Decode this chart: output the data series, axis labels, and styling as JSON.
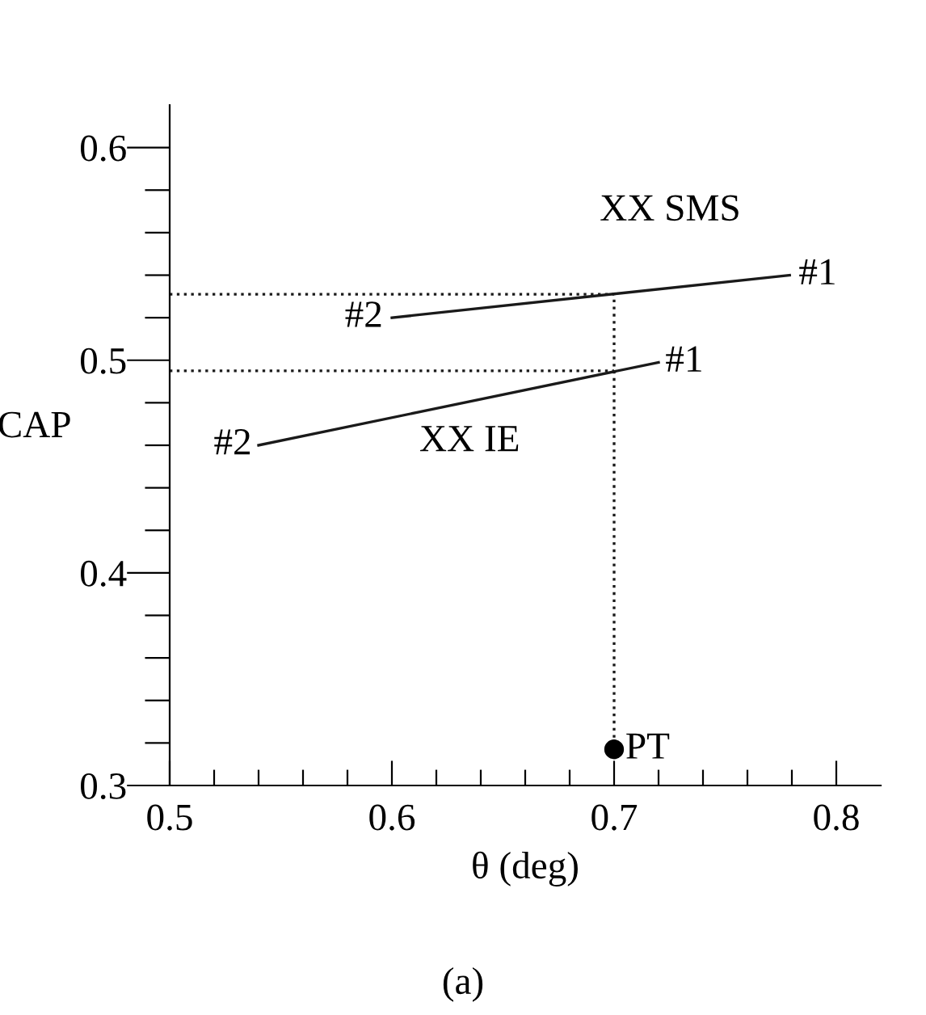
{
  "chart_data": {
    "type": "line",
    "xlabel": "θ (deg)",
    "ylabel": "CAP",
    "xlim": [
      0.5,
      0.82
    ],
    "ylim": [
      0.3,
      0.62
    ],
    "xticks": [
      0.5,
      {
        "value": 0.52,
        "label": null
      },
      {
        "value": 0.54,
        "label": null
      },
      {
        "value": 0.56,
        "label": null
      },
      {
        "value": 0.58,
        "label": null
      },
      0.6,
      {
        "value": 0.62,
        "label": null
      },
      {
        "value": 0.64,
        "label": null
      },
      {
        "value": 0.66,
        "label": null
      },
      {
        "value": 0.68,
        "label": null
      },
      0.7,
      {
        "value": 0.72,
        "label": null
      },
      {
        "value": 0.74,
        "label": null
      },
      {
        "value": 0.76,
        "label": null
      },
      {
        "value": 0.78,
        "label": null
      },
      0.8
    ],
    "yticks": [
      0.3,
      {
        "value": 0.32,
        "label": null
      },
      {
        "value": 0.34,
        "label": null
      },
      {
        "value": 0.36,
        "label": null
      },
      {
        "value": 0.38,
        "label": null
      },
      0.4,
      {
        "value": 0.42,
        "label": null
      },
      {
        "value": 0.44,
        "label": null
      },
      {
        "value": 0.46,
        "label": null
      },
      {
        "value": 0.48,
        "label": null
      },
      0.5,
      {
        "value": 0.52,
        "label": null
      },
      {
        "value": 0.54,
        "label": null
      },
      {
        "value": 0.56,
        "label": null
      },
      {
        "value": 0.58,
        "label": null
      },
      0.6
    ],
    "grid": false,
    "legend": false,
    "series": [
      {
        "color": "#1a1a1a",
        "x": [
          0.6,
          0.779
        ],
        "values": [
          0.52,
          0.54
        ],
        "line_style": "solid",
        "marker": "none"
      },
      {
        "color": "#1a1a1a",
        "x": [
          0.54,
          0.72
        ],
        "values": [
          0.46,
          0.499
        ],
        "line_style": "solid",
        "marker": "none"
      },
      {
        "color": "#1a1a1a",
        "x": [
          0.5,
          0.7,
          0.7
        ],
        "values": [
          0.531,
          0.531,
          0.317
        ],
        "line_style": "dotted",
        "marker": "none"
      },
      {
        "color": "#1a1a1a",
        "x": [
          0.5,
          0.7
        ],
        "values": [
          0.495,
          0.495
        ],
        "line_style": "dotted",
        "marker": "none"
      },
      {
        "type": "scatter",
        "color": "#000000",
        "x": [
          0.7
        ],
        "values": [
          0.317
        ],
        "marker": "circle"
      }
    ],
    "annotations": [
      {
        "text": "XX SMS",
        "x": 0.7,
        "y": 0.531
      },
      {
        "text": "#1",
        "x": 0.779,
        "y": 0.54
      },
      {
        "text": "#2",
        "x": 0.6,
        "y": 0.52
      },
      {
        "text": "#1",
        "x": 0.72,
        "y": 0.499
      },
      {
        "text": "#2",
        "x": 0.54,
        "y": 0.46
      },
      {
        "text": "XX IE",
        "x": 0.635,
        "y": 0.4806
      },
      {
        "text": "PT",
        "x": 0.7,
        "y": 0.317
      },
      "(a)"
    ]
  }
}
